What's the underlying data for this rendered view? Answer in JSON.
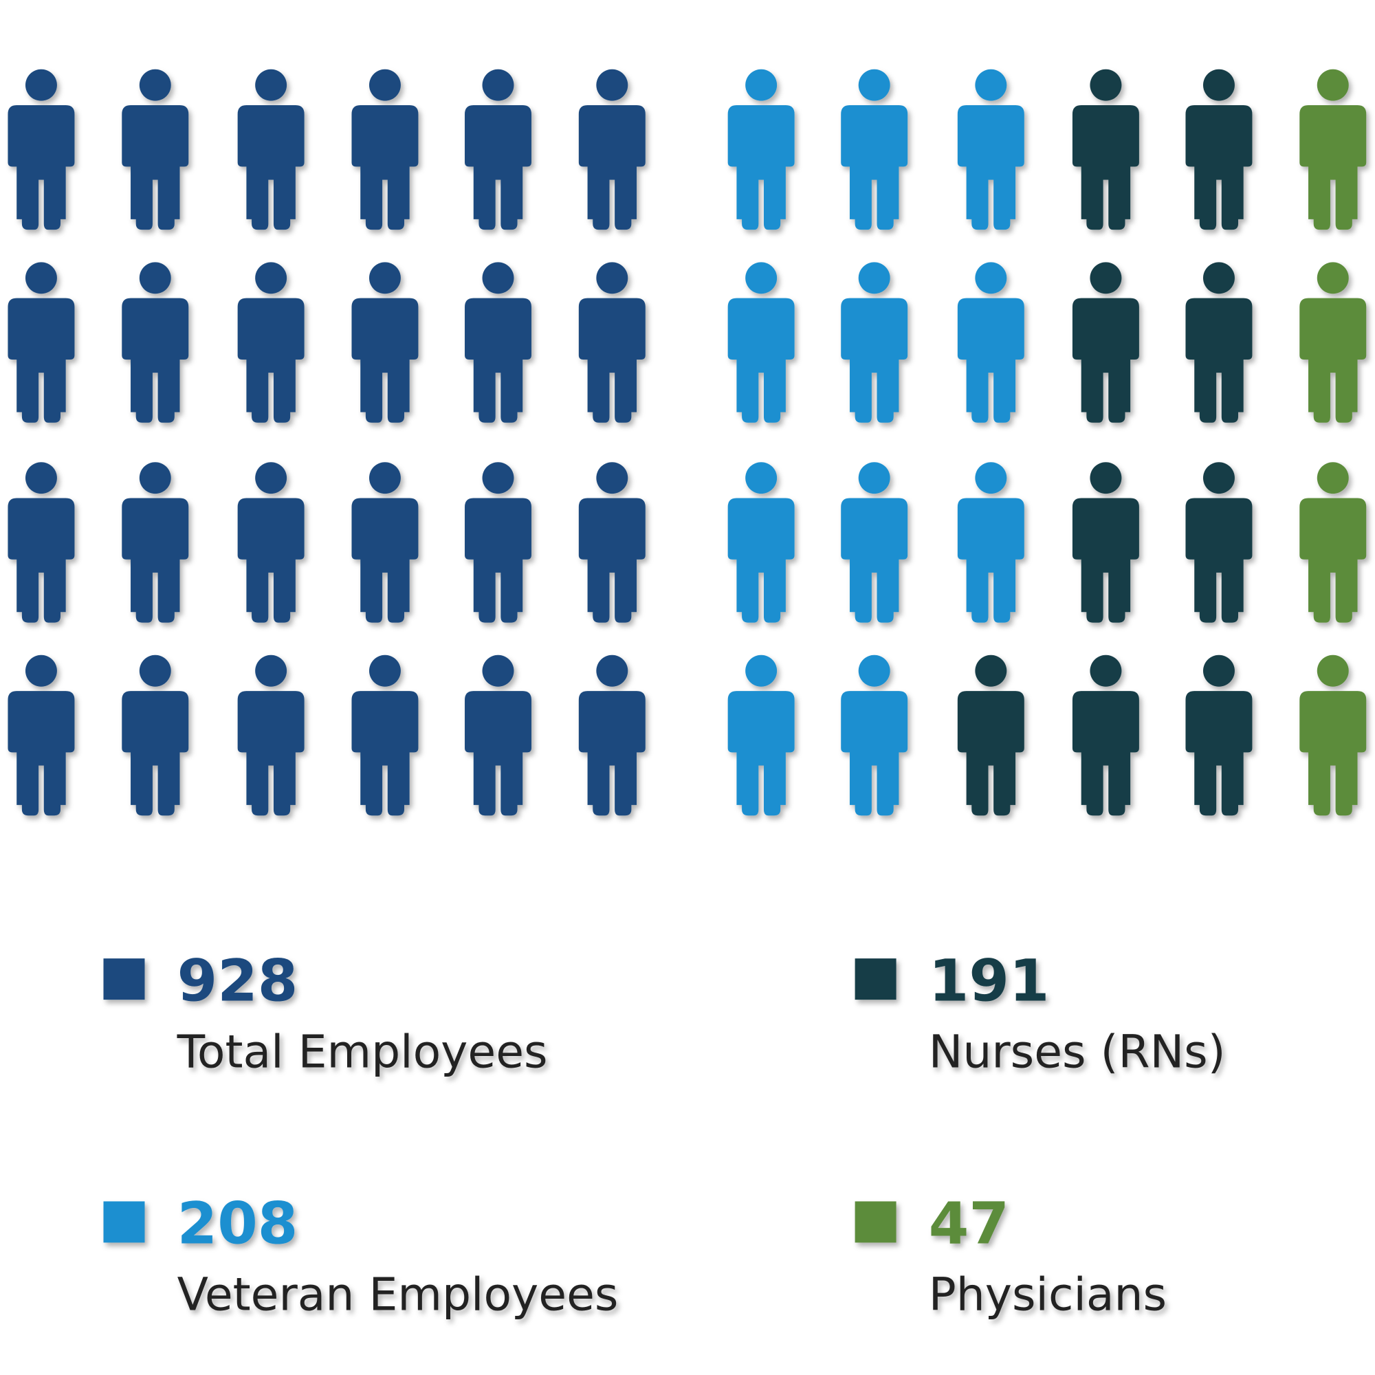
{
  "chart_data": {
    "type": "pictogram",
    "series": [
      {
        "name": "Total Employees",
        "value": 928,
        "color": "#1b4a7e"
      },
      {
        "name": "Veteran Employees",
        "value": 208,
        "color": "#1a8fd0"
      },
      {
        "name": "Nurses (RNs)",
        "value": 191,
        "color": "#163c47"
      },
      {
        "name": "Physicians",
        "value": 47,
        "color": "#5b8c3a"
      }
    ]
  }
}
